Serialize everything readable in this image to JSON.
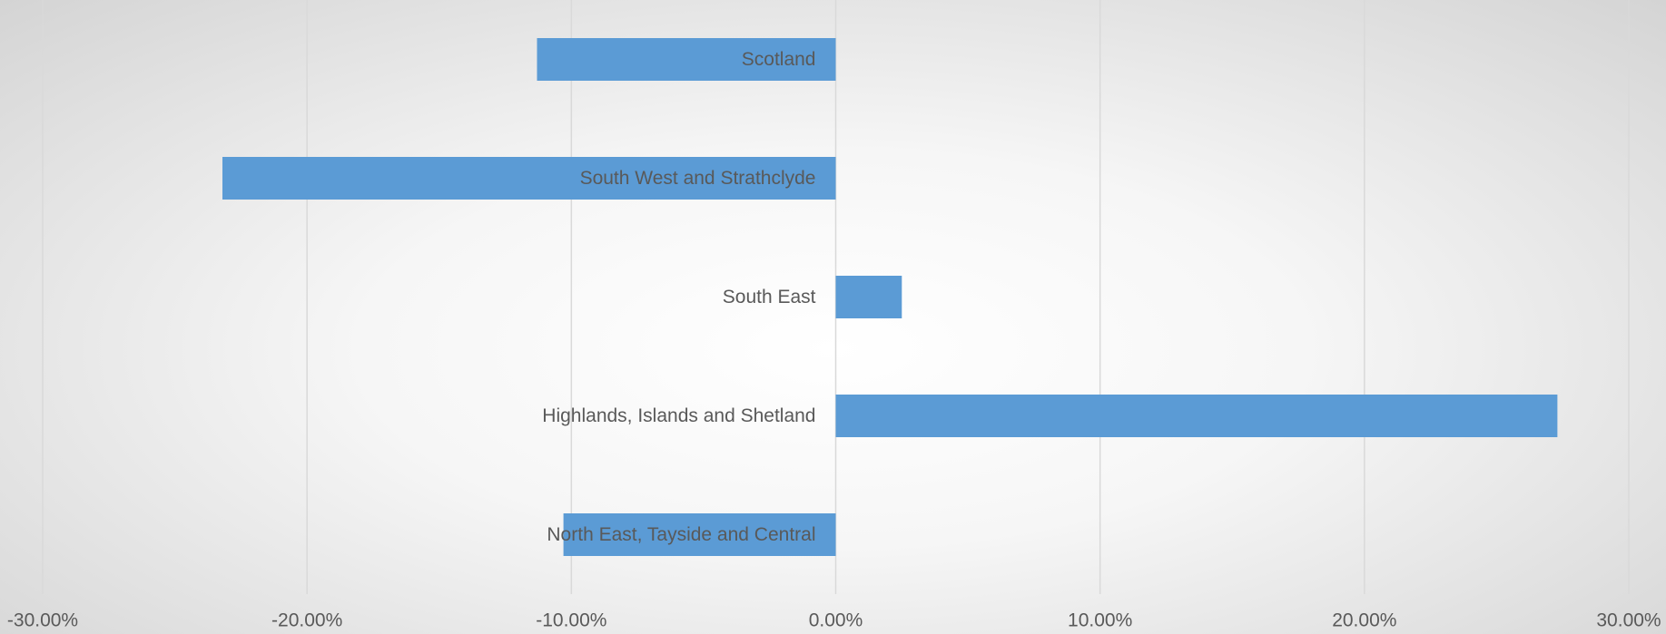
{
  "chart_data": {
    "type": "bar",
    "orientation": "horizontal",
    "categories": [
      "Scotland",
      "South West and Strathclyde",
      "South East",
      "Highlands, Islands and Shetland",
      "North East, Tayside and Central"
    ],
    "values": [
      -11.3,
      -23.2,
      2.5,
      27.3,
      -10.3
    ],
    "color": "#5b9bd5",
    "xlim": [
      -30,
      30
    ],
    "xticks": [
      {
        "value": -30,
        "label": "-30.00%"
      },
      {
        "value": -20,
        "label": "-20.00%"
      },
      {
        "value": -10,
        "label": "-10.00%"
      },
      {
        "value": 0,
        "label": "0.00%"
      },
      {
        "value": 10,
        "label": "10.00%"
      },
      {
        "value": 20,
        "label": "20.00%"
      },
      {
        "value": 30,
        "label": "30.00%"
      }
    ],
    "grid": true
  }
}
